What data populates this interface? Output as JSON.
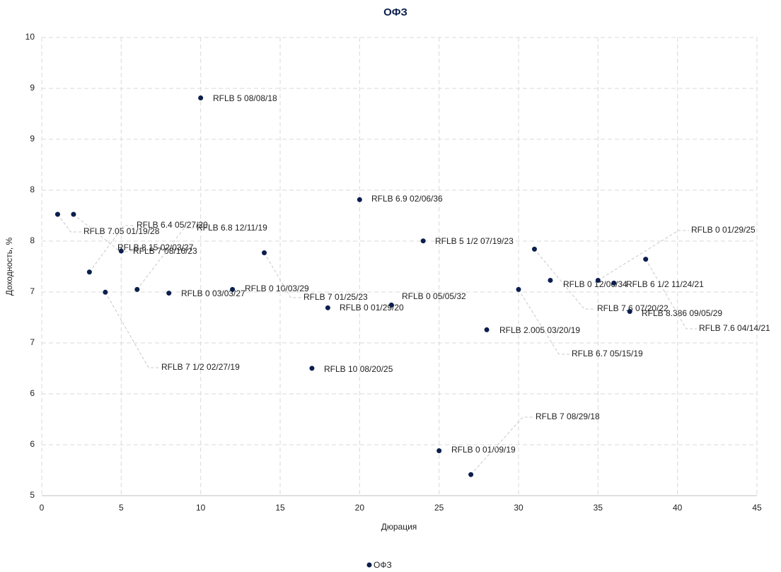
{
  "chart_data": {
    "type": "scatter",
    "title": "ОФЗ",
    "x_label": "Дюрация",
    "y_label": "Доходность, %",
    "xlim": [
      0,
      45
    ],
    "xticks": [
      0,
      5,
      10,
      15,
      20,
      25,
      30,
      35,
      40,
      45
    ],
    "ylim": [
      5,
      10
    ],
    "yticks": [
      5,
      {
        "value": 5.556,
        "label": "6"
      },
      {
        "value": 6.111,
        "label": "6"
      },
      {
        "value": 6.667,
        "label": "7"
      },
      {
        "value": 7.222,
        "label": "7"
      },
      {
        "value": 7.778,
        "label": "8"
      },
      {
        "value": 8.333,
        "label": "8"
      },
      {
        "value": 8.889,
        "label": "9"
      },
      {
        "value": 9.444,
        "label": "9"
      },
      10
    ],
    "grid": true,
    "legend": "bottom",
    "series": [
      {
        "name": "ОФЗ",
        "color": "#0b1f4d",
        "x": [
          1,
          2,
          3,
          4,
          5,
          6,
          8,
          10,
          12,
          14,
          17,
          18,
          20,
          22,
          24,
          25,
          27,
          28,
          30,
          31,
          32,
          35,
          36,
          37,
          38
        ],
        "values": [
          8.07,
          8.07,
          7.44,
          7.22,
          7.67,
          7.25,
          7.21,
          9.34,
          7.25,
          7.65,
          6.39,
          7.05,
          8.23,
          7.08,
          7.78,
          5.49,
          5.23,
          6.81,
          7.25,
          7.69,
          7.35,
          7.35,
          7.32,
          7.01,
          7.58
        ],
        "labels": [
          "RFLB 7.05 01/19/28",
          "RFLB 7 08/16/23",
          "RFLB 6.4 05/27/20",
          "RFLB 7 1/2 02/27/19",
          "RFLB 8.15 02/03/27",
          "RFLB 6.8 12/11/19",
          "RFLB 0 03/03/27",
          "RFLB 5 08/08/18",
          "RFLB 0 10/03/29",
          "RFLB 7 01/25/23",
          "RFLB 10 08/20/25",
          "RFLB 0 01/29/20",
          "RFLB 6.9 02/06/36",
          "RFLB 0 05/05/32",
          "RFLB 5 1/2 07/19/23",
          "RFLB 0 01/09/19",
          "RFLB 7 08/29/18",
          "RFLB 2.005 03/20/19",
          "RFLB 6.7 05/15/19",
          "RFLB 7.6 07/20/22",
          "RFLB 0 12/06/34",
          "RFLB 0 01/29/25",
          "RFLB 6 1/2 11/24/21",
          "RFLB 8.386 09/05/29",
          "RFLB 7.6 04/14/21"
        ]
      }
    ]
  }
}
